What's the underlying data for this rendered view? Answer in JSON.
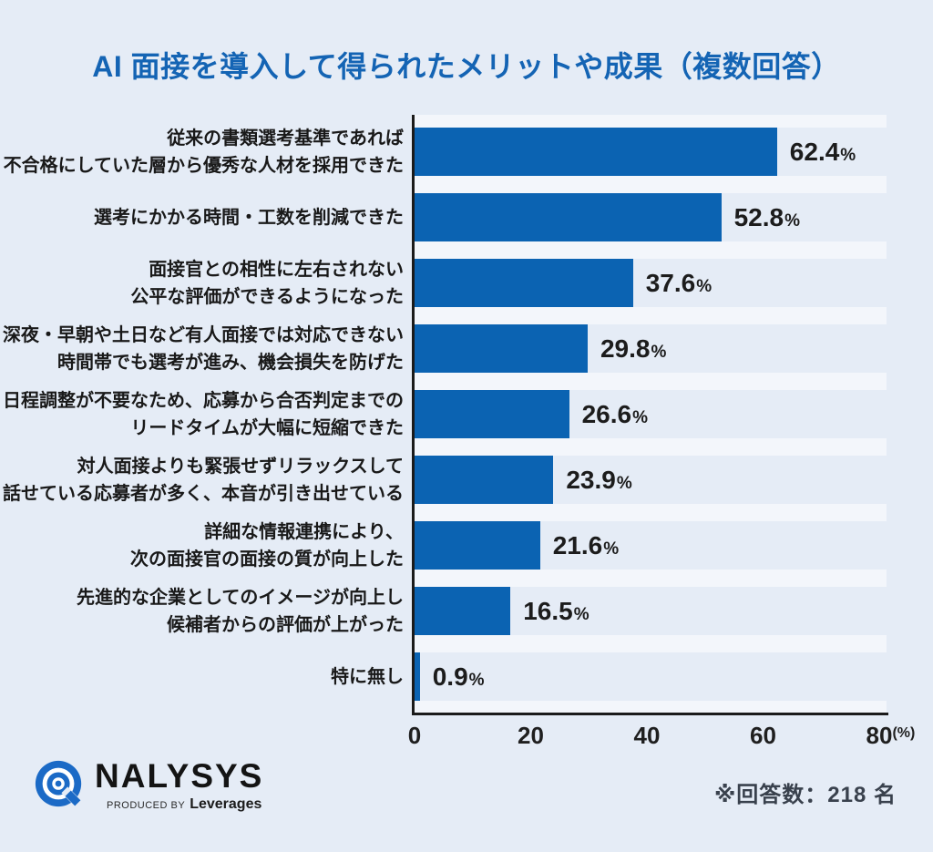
{
  "title": "AI 面接を導入して得られたメリットや成果（複数回答）",
  "chart_data": {
    "type": "bar",
    "orientation": "horizontal",
    "title": "AI 面接を導入して得られたメリットや成果（複数回答）",
    "xlim": [
      0,
      80
    ],
    "value_unit": "%",
    "bar_color": "#0b63b2",
    "grid": false,
    "legend": false,
    "items": [
      {
        "label_lines": [
          "従来の書類選考基準であれば",
          "不合格にしていた層から優秀な人材を採用できた"
        ],
        "value": 62.4,
        "value_label": "62.4"
      },
      {
        "label_lines": [
          "選考にかかる時間・工数を削減できた"
        ],
        "value": 52.8,
        "value_label": "52.8"
      },
      {
        "label_lines": [
          "面接官との相性に左右されない",
          "公平な評価ができるようになった"
        ],
        "value": 37.6,
        "value_label": "37.6"
      },
      {
        "label_lines": [
          "深夜・早朝や土日など有人面接では対応できない",
          "時間帯でも選考が進み、機会損失を防げた"
        ],
        "value": 29.8,
        "value_label": "29.8"
      },
      {
        "label_lines": [
          "日程調整が不要なため、応募から合否判定までの",
          "リードタイムが大幅に短縮できた"
        ],
        "value": 26.6,
        "value_label": "26.6"
      },
      {
        "label_lines": [
          "対人面接よりも緊張せずリラックスして",
          "話せている応募者が多く、本音が引き出せている"
        ],
        "value": 23.9,
        "value_label": "23.9"
      },
      {
        "label_lines": [
          "詳細な情報連携により、",
          "次の面接官の面接の質が向上した"
        ],
        "value": 21.6,
        "value_label": "21.6"
      },
      {
        "label_lines": [
          "先進的な企業としてのイメージが向上し",
          "候補者からの評価が上がった"
        ],
        "value": 16.5,
        "value_label": "16.5"
      },
      {
        "label_lines": [
          "特に無し"
        ],
        "value": 0.9,
        "value_label": "0.9"
      }
    ],
    "x_ticks": [
      {
        "value": 0,
        "label": "0"
      },
      {
        "value": 20,
        "label": "20"
      },
      {
        "value": 40,
        "label": "40"
      },
      {
        "value": 60,
        "label": "60"
      },
      {
        "value": 80,
        "label": "80",
        "suffix": "(%)"
      }
    ]
  },
  "footer": {
    "logo": {
      "brand": "NALYSYS",
      "produced_by": "PRODUCED BY",
      "producer": "Leverages"
    },
    "note": "※回答数：218 名"
  },
  "colors": {
    "background": "#e5ecf6",
    "bar": "#0b63b2",
    "title": "#1464b4",
    "axis": "#1b1b1b",
    "label_text": "#191919",
    "note_text": "#39414d",
    "logo_blue": "#1b6ac6"
  }
}
